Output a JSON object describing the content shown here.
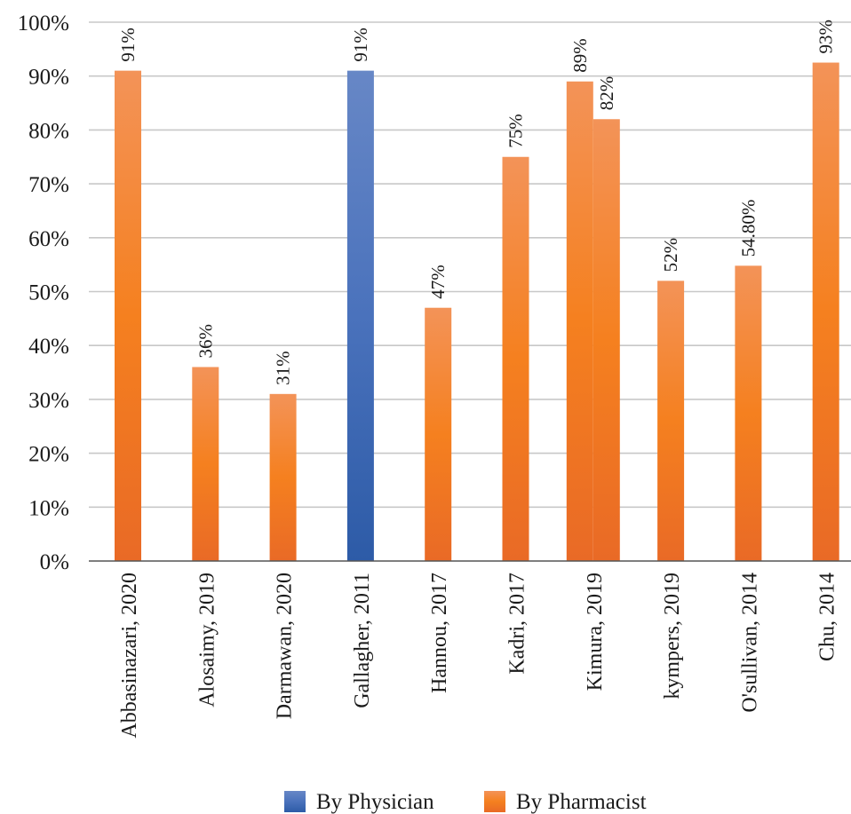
{
  "chart_data": {
    "type": "bar",
    "categories": [
      "Abbasinazari, 2020",
      "Alosaimy, 2019",
      "Darmawan, 2020",
      "Gallagher, 2011",
      "Hannou, 2017",
      "Kadri, 2017",
      "Kimura, 2019",
      "kympers, 2019",
      "O'sullivan, 2014",
      "Chu, 2014"
    ],
    "bars": [
      {
        "category_index": 0,
        "value": 91,
        "series": "By Pharmacist",
        "label": "91%"
      },
      {
        "category_index": 1,
        "value": 36,
        "series": "By Pharmacist",
        "label": "36%"
      },
      {
        "category_index": 2,
        "value": 31,
        "series": "By Pharmacist",
        "label": "31%"
      },
      {
        "category_index": 3,
        "value": 91,
        "series": "By Physician",
        "label": "91%"
      },
      {
        "category_index": 4,
        "value": 47,
        "series": "By Pharmacist",
        "label": "47%"
      },
      {
        "category_index": 5,
        "value": 75,
        "series": "By Pharmacist",
        "label": "75%"
      },
      {
        "category_index": 6,
        "value": 89,
        "series": "By Pharmacist",
        "label": "89%",
        "slot": "left"
      },
      {
        "category_index": 6,
        "value": 82,
        "series": "By Pharmacist",
        "label": "82%",
        "slot": "right"
      },
      {
        "category_index": 7,
        "value": 52,
        "series": "By Pharmacist",
        "label": "52%"
      },
      {
        "category_index": 8,
        "value": 54.8,
        "series": "By Pharmacist",
        "label": "54.80%"
      },
      {
        "category_index": 9,
        "value": 92.5,
        "series": "By Pharmacist",
        "label": "93%"
      }
    ],
    "series": [
      {
        "name": "By Physician",
        "color": "#4472c4"
      },
      {
        "name": "By Pharmacist",
        "color": "#f58233"
      }
    ],
    "y_ticks": [
      "0%",
      "10%",
      "20%",
      "30%",
      "40%",
      "50%",
      "60%",
      "70%",
      "80%",
      "90%",
      "100%"
    ],
    "ylim": [
      0,
      100
    ],
    "grid": true,
    "legend_position": "bottom"
  }
}
